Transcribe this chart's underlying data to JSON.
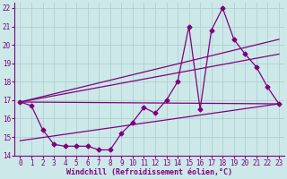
{
  "xlabel": "Windchill (Refroidissement éolien,°C)",
  "background_color": "#cce8e8",
  "grid_color": "#aacccc",
  "line_color": "#800080",
  "xlim": [
    -0.5,
    23.5
  ],
  "ylim": [
    14,
    22.3
  ],
  "xticks": [
    0,
    1,
    2,
    3,
    4,
    5,
    6,
    7,
    8,
    9,
    10,
    11,
    12,
    13,
    14,
    15,
    16,
    17,
    18,
    19,
    20,
    21,
    22,
    23
  ],
  "yticks": [
    14,
    15,
    16,
    17,
    18,
    19,
    20,
    21,
    22
  ],
  "line1_x": [
    0,
    1,
    2,
    3,
    4,
    5,
    6,
    7,
    8,
    9,
    10,
    11,
    12,
    13,
    14,
    15,
    16,
    17,
    18,
    19,
    20,
    21,
    22,
    23
  ],
  "line1_y": [
    16.9,
    16.7,
    15.4,
    14.6,
    14.5,
    14.5,
    14.5,
    14.3,
    14.3,
    15.2,
    15.8,
    16.6,
    16.3,
    17.0,
    18.0,
    21.0,
    16.5,
    20.8,
    22.0,
    20.3,
    19.5,
    18.8,
    17.7,
    16.8
  ],
  "line2_x": [
    0,
    23
  ],
  "line2_y": [
    16.9,
    16.8
  ],
  "line3_x": [
    0,
    23
  ],
  "line3_y": [
    16.9,
    20.3
  ],
  "line4_x": [
    0,
    23
  ],
  "line4_y": [
    16.9,
    19.5
  ],
  "line5_x": [
    0,
    23
  ],
  "line5_y": [
    14.8,
    16.8
  ],
  "markersize": 2.5,
  "linewidth": 0.9,
  "tick_fontsize": 5.5,
  "xlabel_fontsize": 6
}
